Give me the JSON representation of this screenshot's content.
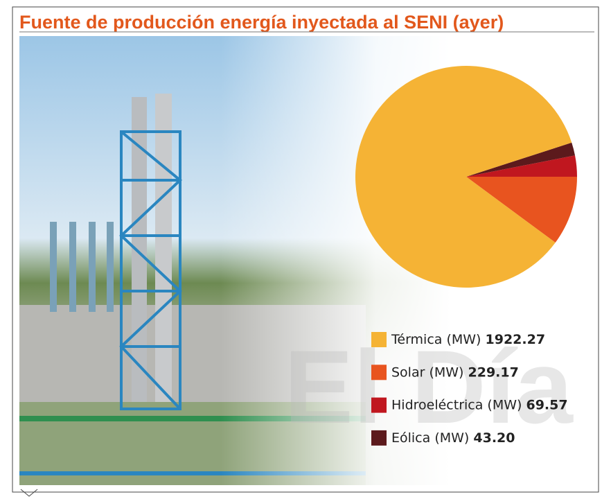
{
  "title": "Fuente de producción energía inyectada al SENI (ayer)",
  "watermark": "El Día",
  "chart_data": {
    "type": "pie",
    "categories": [
      "Térmica (MW)",
      "Solar (MW)",
      "Hidroeléctrica (MW)",
      "Eólica (MW)"
    ],
    "values": [
      1922.27,
      229.17,
      69.57,
      43.2
    ],
    "value_labels": [
      "1922.27",
      "229.17",
      "69.57",
      "43.20"
    ],
    "colors": [
      "#f5b335",
      "#e8541f",
      "#c0171f",
      "#5c1a1c"
    ]
  }
}
